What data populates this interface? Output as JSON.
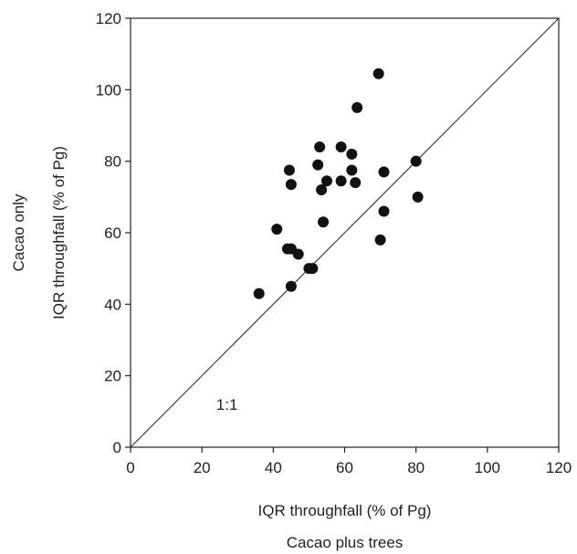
{
  "chart_data": {
    "type": "scatter",
    "xlabel_line1": "IQR throughfall (% of Pg)",
    "xlabel_line2": "Cacao plus trees",
    "ylabel_line1": "IQR throughfall (% of Pg)",
    "ylabel_line2": "Cacao only",
    "annotation": "1:1",
    "xlim": [
      0,
      120
    ],
    "ylim": [
      0,
      120
    ],
    "xticks": [
      0,
      20,
      40,
      60,
      80,
      100,
      120
    ],
    "yticks": [
      0,
      20,
      40,
      60,
      80,
      100,
      120
    ],
    "reference_line": "1:1",
    "grid": false,
    "marker_color": "#111111",
    "points": [
      {
        "x": 36,
        "y": 43
      },
      {
        "x": 41,
        "y": 61
      },
      {
        "x": 44,
        "y": 55.5
      },
      {
        "x": 45,
        "y": 55.5
      },
      {
        "x": 45,
        "y": 45
      },
      {
        "x": 44.5,
        "y": 77.5
      },
      {
        "x": 45,
        "y": 73.5
      },
      {
        "x": 47,
        "y": 54
      },
      {
        "x": 50,
        "y": 50
      },
      {
        "x": 51,
        "y": 50
      },
      {
        "x": 52.5,
        "y": 79
      },
      {
        "x": 53,
        "y": 84
      },
      {
        "x": 53.5,
        "y": 72
      },
      {
        "x": 54,
        "y": 63
      },
      {
        "x": 55,
        "y": 74.5
      },
      {
        "x": 59,
        "y": 84
      },
      {
        "x": 59,
        "y": 74.5
      },
      {
        "x": 62,
        "y": 82
      },
      {
        "x": 62,
        "y": 77.5
      },
      {
        "x": 63,
        "y": 74
      },
      {
        "x": 63.5,
        "y": 95
      },
      {
        "x": 69.5,
        "y": 104.5
      },
      {
        "x": 70,
        "y": 58
      },
      {
        "x": 71,
        "y": 77
      },
      {
        "x": 71,
        "y": 66
      },
      {
        "x": 80,
        "y": 80
      },
      {
        "x": 80.5,
        "y": 70
      }
    ]
  }
}
